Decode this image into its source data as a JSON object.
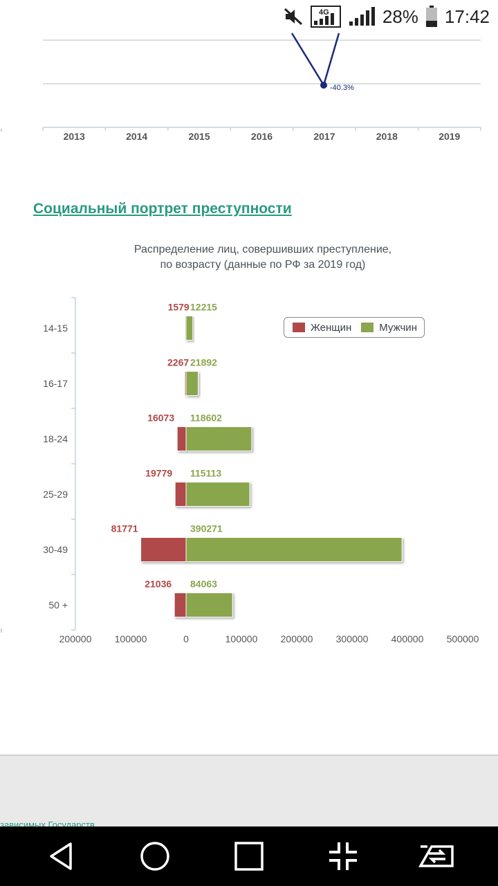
{
  "status_bar": {
    "battery": "28%",
    "time": "17:42",
    "network": "4G",
    "icons": [
      "mute-icon",
      "signal-4g-icon",
      "signal-icon",
      "battery-icon"
    ]
  },
  "section": {
    "title": "Социальный портрет преступности"
  },
  "top_chart": {
    "years": [
      "2013",
      "2014",
      "2015",
      "2016",
      "2017",
      "2018",
      "2019"
    ],
    "point_label": "-40.3%",
    "line_color": "#1b2a78"
  },
  "chart_data": {
    "type": "bar",
    "orientation": "horizontal",
    "title_lines": [
      "Распределение лиц, совершивших преступление,",
      "по возрасту (данные по РФ за 2019 год)"
    ],
    "categories": [
      "14-15",
      "16-17",
      "18-24",
      "25-29",
      "30-49",
      "50 +"
    ],
    "series": [
      {
        "name": "Женщин",
        "color": "#b04848",
        "values": [
          1579,
          2267,
          16073,
          19779,
          81771,
          21036
        ]
      },
      {
        "name": "Мужчин",
        "color": "#8aa64e",
        "values": [
          12215,
          21892,
          118602,
          115113,
          390271,
          84063
        ]
      }
    ],
    "x_ticks": [
      "200000",
      "100000",
      "0",
      "100000",
      "200000",
      "300000",
      "400000",
      "500000"
    ],
    "xlim": [
      -200000,
      500000
    ],
    "legend_position": "top-right",
    "grid": false
  },
  "footer": {
    "link_text": "зависимых Государств"
  },
  "nav": {
    "icons": [
      "back-icon",
      "home-icon",
      "recents-icon",
      "fullscreen-exit-icon",
      "switch-icon"
    ]
  }
}
